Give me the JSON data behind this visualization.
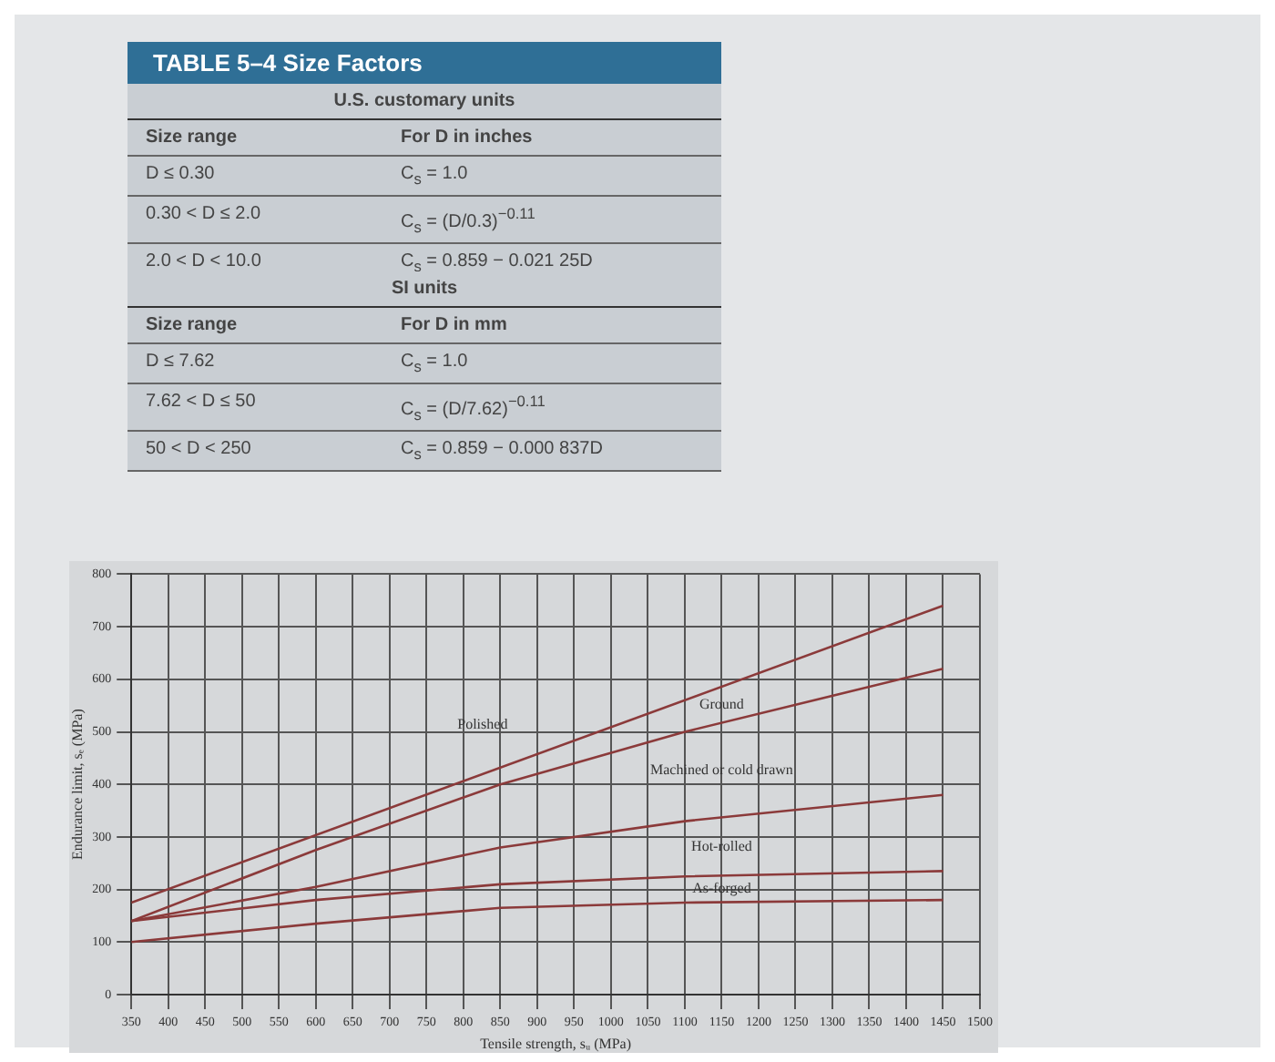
{
  "chart_data": [
    {
      "type": "other",
      "title": "TABLE 5–4 Size Factors",
      "subtitle": "U.S. customary units",
      "annotations": [
        "Size range",
        "For D in inches",
        "D ≤ 0.30",
        "C$_{s}$ = 1.0",
        "0.30 < D ≤ 2.0",
        "C$_{s}$ = (D/0.3)$^{−0.11}$",
        "2.0 < D < 10.0",
        "C$_{s}$ = 0.859 − 0.021 25D"
      ]
    },
    {
      "type": "other",
      "subtitle": "SI units",
      "annotations": [
        "Size range",
        "For D in mm",
        "D ≤ 7.62",
        "C$_{s}$ = 1.0",
        "7.62 < D ≤ 50",
        "C$_{s}$ = (D/7.62)$^{−0.11}$",
        "50 < D < 250",
        "C$_{s}$ = 0.859 − 0.000 837D"
      ]
    },
    {
      "type": "line",
      "xlabel": "Tensile strength, sᵤ (MPa)",
      "ylabel": "Endurance limit, sₑ (MPa)",
      "xlim": [
        350,
        1500
      ],
      "ylim": [
        0,
        800
      ],
      "xticks": [
        350,
        400,
        450,
        500,
        550,
        600,
        650,
        700,
        750,
        800,
        850,
        900,
        950,
        1000,
        1050,
        1100,
        1150,
        1200,
        1250,
        1300,
        1350,
        1400,
        1450,
        1500
      ],
      "yticks": [
        0,
        100,
        200,
        300,
        400,
        500,
        600,
        700,
        800
      ],
      "grid": true,
      "legend": false,
      "marker": "none",
      "line_style": "solid",
      "series": [
        {
          "color": "#8b3a3a",
          "x": [
            350,
            1450
          ],
          "values": [
            175,
            740
          ]
        },
        {
          "color": "#8b3a3a",
          "x": [
            350,
            600,
            850,
            1100,
            1450
          ],
          "values": [
            140,
            275,
            400,
            500,
            620
          ]
        },
        {
          "color": "#8b3a3a",
          "x": [
            350,
            600,
            850,
            1100,
            1450
          ],
          "values": [
            140,
            205,
            280,
            330,
            380
          ]
        },
        {
          "color": "#8b3a3a",
          "x": [
            350,
            600,
            850,
            1100,
            1450
          ],
          "values": [
            140,
            180,
            210,
            225,
            235
          ]
        },
        {
          "color": "#8b3a3a",
          "x": [
            350,
            600,
            850,
            1100,
            1450
          ],
          "values": [
            100,
            135,
            165,
            175,
            180
          ]
        }
      ],
      "annotations": [
        "Polished",
        "Ground",
        "Machined or cold drawn",
        "Hot-rolled",
        "As-forged"
      ]
    }
  ]
}
